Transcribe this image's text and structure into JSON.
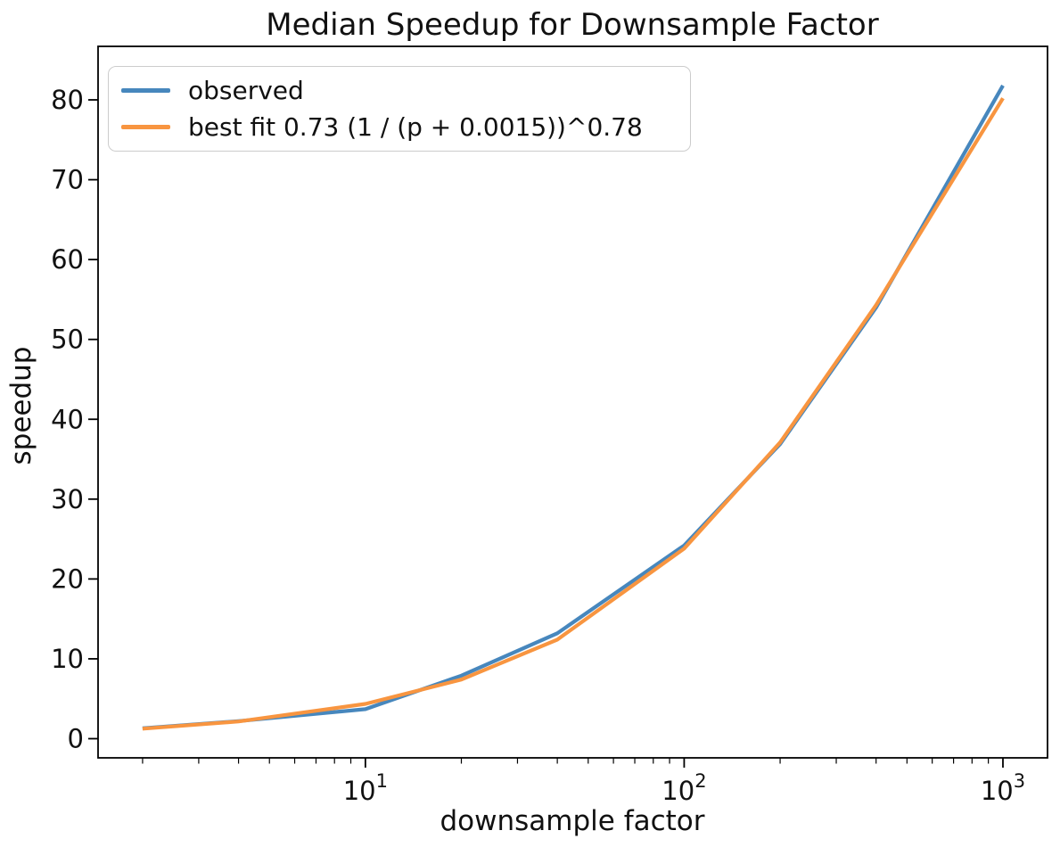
{
  "figure": {
    "background": "#ffffff",
    "spine_color": "#000000",
    "text_color": "#111111"
  },
  "legend": {
    "position": "upper left",
    "items": [
      {
        "label": "observed",
        "color": "#4787bd"
      },
      {
        "label": "best fit 0.73 (1 / (p + 0.0015))^0.78",
        "color": "#f89540"
      }
    ]
  },
  "chart_data": {
    "type": "line",
    "title": "Median Speedup for Downsample Factor",
    "xlabel": "downsample factor",
    "ylabel": "speedup",
    "xscale": "log",
    "yscale": "linear",
    "grid": false,
    "legend_position": "upper left",
    "x": [
      2,
      4,
      10,
      20,
      40,
      100,
      200,
      400,
      1000
    ],
    "series": [
      {
        "name": "observed",
        "color": "#4787bd",
        "values": [
          1.3,
          2.2,
          3.7,
          7.9,
          13.2,
          24.2,
          36.9,
          54.0,
          81.8
        ]
      },
      {
        "name": "best fit 0.73 (1 / (p + 0.0015))^0.78",
        "color": "#f89540",
        "values": [
          1.25,
          2.15,
          4.35,
          7.4,
          12.4,
          23.8,
          37.1,
          54.3,
          80.2
        ]
      }
    ],
    "xlim": [
      1.45,
      1380
    ],
    "ylim": [
      -2.4,
      86.7
    ],
    "yticks": [
      0,
      10,
      20,
      30,
      40,
      50,
      60,
      70,
      80
    ],
    "xticks": [
      {
        "value": 10,
        "base": "10",
        "exponent": "1"
      },
      {
        "value": 100,
        "base": "10",
        "exponent": "2"
      },
      {
        "value": 1000,
        "base": "10",
        "exponent": "3"
      }
    ],
    "line_width": 4.2
  }
}
